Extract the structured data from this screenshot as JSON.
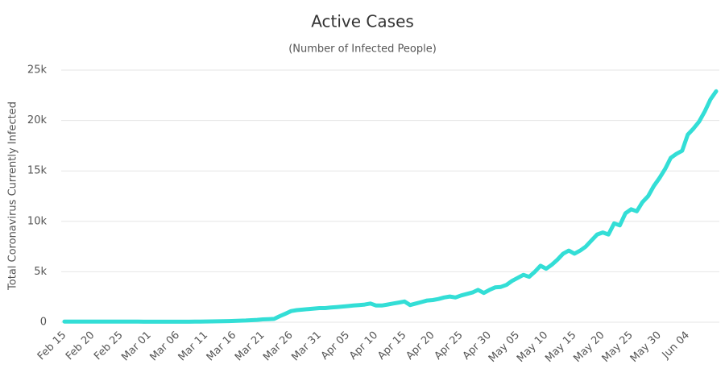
{
  "chart_data": {
    "type": "line",
    "title": "Active Cases",
    "subtitle": "(Number of Infected People)",
    "y_label": "Total Coronavirus Currently Infected",
    "categories": [
      "Feb 15",
      null,
      null,
      null,
      null,
      "Feb 20",
      null,
      null,
      null,
      null,
      "Feb 25",
      null,
      null,
      null,
      null,
      "Mar 01",
      null,
      null,
      null,
      null,
      "Mar 06",
      null,
      null,
      null,
      null,
      "Mar 11",
      null,
      null,
      null,
      null,
      "Mar 16",
      null,
      null,
      null,
      null,
      "Mar 21",
      null,
      null,
      null,
      null,
      "Mar 26",
      null,
      null,
      null,
      null,
      "Mar 31",
      null,
      null,
      null,
      null,
      "Apr 05",
      null,
      null,
      null,
      null,
      "Apr 10",
      null,
      null,
      null,
      null,
      "Apr 15",
      null,
      null,
      null,
      null,
      "Apr 20",
      null,
      null,
      null,
      null,
      "Apr 25",
      null,
      null,
      null,
      null,
      "Apr 30",
      null,
      null,
      null,
      null,
      "May 05",
      null,
      null,
      null,
      null,
      "May 10",
      null,
      null,
      null,
      null,
      "May 15",
      null,
      null,
      null,
      null,
      "May 20",
      null,
      null,
      null,
      null,
      "May 25",
      null,
      null,
      null,
      null,
      "May 30",
      null,
      null,
      null,
      null,
      "Jun 04",
      null,
      null,
      null,
      null,
      null
    ],
    "series": [
      {
        "name": "Currently Infected",
        "color": "#33ded6",
        "values": [
          60,
          60,
          60,
          60,
          60,
          60,
          60,
          60,
          60,
          60,
          60,
          60,
          60,
          60,
          50,
          50,
          50,
          50,
          50,
          50,
          50,
          50,
          50,
          60,
          60,
          70,
          80,
          90,
          100,
          110,
          130,
          150,
          170,
          200,
          230,
          280,
          300,
          330,
          600,
          850,
          1100,
          1200,
          1250,
          1300,
          1350,
          1400,
          1400,
          1450,
          1500,
          1550,
          1600,
          1650,
          1700,
          1750,
          1850,
          1650,
          1650,
          1750,
          1850,
          1950,
          2050,
          1700,
          1850,
          2000,
          2150,
          2200,
          2300,
          2450,
          2550,
          2450,
          2650,
          2800,
          2950,
          3200,
          2900,
          3200,
          3450,
          3500,
          3700,
          4100,
          4400,
          4700,
          4500,
          5000,
          5600,
          5300,
          5700,
          6200,
          6800,
          7100,
          6800,
          7100,
          7500,
          8100,
          8700,
          8900,
          8700,
          9800,
          9600,
          10800,
          11200,
          11000,
          11900,
          12500,
          13500,
          14300,
          15200,
          16300,
          16700,
          17000,
          18600,
          19200,
          19900,
          20900,
          22100,
          22900
        ]
      }
    ],
    "ylim": [
      0,
      25000
    ],
    "yticks": [
      0,
      {
        "value": 5000,
        "label": "5k"
      },
      {
        "value": 10000,
        "label": "10k"
      },
      {
        "value": 15000,
        "label": "15k"
      },
      {
        "value": 20000,
        "label": "20k"
      },
      {
        "value": 25000,
        "label": "25k"
      }
    ],
    "grid": true
  }
}
